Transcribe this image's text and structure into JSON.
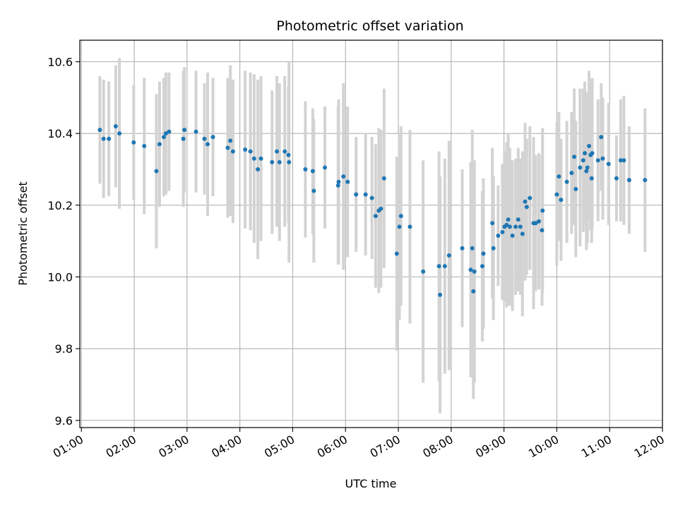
{
  "chart_data": {
    "type": "scatter",
    "title": "Photometric offset variation",
    "xlabel": "UTC time",
    "ylabel": "Photometric offset",
    "x_unit": "hours UTC",
    "xlim": [
      0.97,
      12.0
    ],
    "ylim": [
      9.58,
      10.66
    ],
    "xticks": [
      1,
      2,
      3,
      4,
      5,
      6,
      7,
      8,
      9,
      10,
      11,
      12
    ],
    "xtick_labels": [
      "01:00",
      "02:00",
      "03:00",
      "04:00",
      "05:00",
      "06:00",
      "07:00",
      "08:00",
      "09:00",
      "10:00",
      "11:00",
      "12:00"
    ],
    "yticks": [
      9.6,
      9.8,
      10.0,
      10.2,
      10.4,
      10.6
    ],
    "ytick_labels": [
      "9.6",
      "9.8",
      "10.0",
      "10.2",
      "10.4",
      "10.6"
    ],
    "grid": true,
    "colors": {
      "points": "#1f77b4",
      "errorbars": "#d3d3d3",
      "grid": "#b0b0b0"
    },
    "points": [
      {
        "x": 1.35,
        "y": 10.41,
        "err": 0.15
      },
      {
        "x": 1.42,
        "y": 10.385,
        "err": 0.165
      },
      {
        "x": 1.52,
        "y": 10.385,
        "err": 0.16
      },
      {
        "x": 1.65,
        "y": 10.42,
        "err": 0.17
      },
      {
        "x": 1.72,
        "y": 10.4,
        "err": 0.21
      },
      {
        "x": 1.99,
        "y": 10.375,
        "err": 0.16
      },
      {
        "x": 2.19,
        "y": 10.365,
        "err": 0.19
      },
      {
        "x": 2.42,
        "y": 10.295,
        "err": 0.215
      },
      {
        "x": 2.48,
        "y": 10.37,
        "err": 0.175
      },
      {
        "x": 2.56,
        "y": 10.39,
        "err": 0.165
      },
      {
        "x": 2.6,
        "y": 10.4,
        "err": 0.17
      },
      {
        "x": 2.66,
        "y": 10.405,
        "err": 0.165
      },
      {
        "x": 2.93,
        "y": 10.385,
        "err": 0.19
      },
      {
        "x": 2.95,
        "y": 10.41,
        "err": 0.175
      },
      {
        "x": 3.17,
        "y": 10.405,
        "err": 0.17
      },
      {
        "x": 3.33,
        "y": 10.385,
        "err": 0.155
      },
      {
        "x": 3.39,
        "y": 10.37,
        "err": 0.2
      },
      {
        "x": 3.49,
        "y": 10.39,
        "err": 0.165
      },
      {
        "x": 3.77,
        "y": 10.36,
        "err": 0.195
      },
      {
        "x": 3.82,
        "y": 10.38,
        "err": 0.21
      },
      {
        "x": 3.87,
        "y": 10.35,
        "err": 0.2
      },
      {
        "x": 4.1,
        "y": 10.355,
        "err": 0.22
      },
      {
        "x": 4.2,
        "y": 10.35,
        "err": 0.22
      },
      {
        "x": 4.27,
        "y": 10.33,
        "err": 0.235
      },
      {
        "x": 4.34,
        "y": 10.3,
        "err": 0.25
      },
      {
        "x": 4.4,
        "y": 10.33,
        "err": 0.23
      },
      {
        "x": 4.61,
        "y": 10.32,
        "err": 0.2
      },
      {
        "x": 4.7,
        "y": 10.35,
        "err": 0.21
      },
      {
        "x": 4.75,
        "y": 10.32,
        "err": 0.22
      },
      {
        "x": 4.85,
        "y": 10.35,
        "err": 0.21
      },
      {
        "x": 4.92,
        "y": 10.34,
        "err": 0.19
      },
      {
        "x": 4.93,
        "y": 10.32,
        "err": 0.28
      },
      {
        "x": 5.24,
        "y": 10.3,
        "err": 0.19
      },
      {
        "x": 5.38,
        "y": 10.295,
        "err": 0.175
      },
      {
        "x": 5.4,
        "y": 10.24,
        "err": 0.2
      },
      {
        "x": 5.61,
        "y": 10.305,
        "err": 0.17
      },
      {
        "x": 5.86,
        "y": 10.255,
        "err": 0.22
      },
      {
        "x": 5.87,
        "y": 10.265,
        "err": 0.23
      },
      {
        "x": 5.96,
        "y": 10.28,
        "err": 0.26
      },
      {
        "x": 6.04,
        "y": 10.265,
        "err": 0.21
      },
      {
        "x": 6.2,
        "y": 10.23,
        "err": 0.16
      },
      {
        "x": 6.38,
        "y": 10.23,
        "err": 0.17
      },
      {
        "x": 6.5,
        "y": 10.22,
        "err": 0.17
      },
      {
        "x": 6.57,
        "y": 10.17,
        "err": 0.2
      },
      {
        "x": 6.63,
        "y": 10.185,
        "err": 0.23
      },
      {
        "x": 6.67,
        "y": 10.19,
        "err": 0.22
      },
      {
        "x": 6.73,
        "y": 10.275,
        "err": 0.25
      },
      {
        "x": 6.97,
        "y": 10.065,
        "err": 0.27
      },
      {
        "x": 7.02,
        "y": 10.14,
        "err": 0.26
      },
      {
        "x": 7.05,
        "y": 10.17,
        "err": 0.25
      },
      {
        "x": 7.22,
        "y": 10.14,
        "err": 0.27
      },
      {
        "x": 7.47,
        "y": 10.015,
        "err": 0.31
      },
      {
        "x": 7.77,
        "y": 10.03,
        "err": 0.32
      },
      {
        "x": 7.79,
        "y": 9.95,
        "err": 0.33
      },
      {
        "x": 7.88,
        "y": 10.03,
        "err": 0.3
      },
      {
        "x": 7.96,
        "y": 10.06,
        "err": 0.32
      },
      {
        "x": 8.21,
        "y": 10.08,
        "err": 0.22
      },
      {
        "x": 8.37,
        "y": 10.02,
        "err": 0.3
      },
      {
        "x": 8.4,
        "y": 10.08,
        "err": 0.33
      },
      {
        "x": 8.42,
        "y": 9.96,
        "err": 0.3
      },
      {
        "x": 8.44,
        "y": 10.015,
        "err": 0.31
      },
      {
        "x": 8.59,
        "y": 10.03,
        "err": 0.21
      },
      {
        "x": 8.61,
        "y": 10.065,
        "err": 0.21
      },
      {
        "x": 8.78,
        "y": 10.15,
        "err": 0.21
      },
      {
        "x": 8.8,
        "y": 10.08,
        "err": 0.2
      },
      {
        "x": 8.89,
        "y": 10.115,
        "err": 0.14
      },
      {
        "x": 8.97,
        "y": 10.125,
        "err": 0.19
      },
      {
        "x": 9.01,
        "y": 10.14,
        "err": 0.21
      },
      {
        "x": 9.05,
        "y": 10.145,
        "err": 0.23
      },
      {
        "x": 9.08,
        "y": 10.16,
        "err": 0.24
      },
      {
        "x": 9.11,
        "y": 10.14,
        "err": 0.22
      },
      {
        "x": 9.16,
        "y": 10.115,
        "err": 0.21
      },
      {
        "x": 9.22,
        "y": 10.14,
        "err": 0.19
      },
      {
        "x": 9.27,
        "y": 10.16,
        "err": 0.2
      },
      {
        "x": 9.31,
        "y": 10.14,
        "err": 0.19
      },
      {
        "x": 9.35,
        "y": 10.12,
        "err": 0.23
      },
      {
        "x": 9.4,
        "y": 10.21,
        "err": 0.22
      },
      {
        "x": 9.43,
        "y": 10.195,
        "err": 0.19
      },
      {
        "x": 9.49,
        "y": 10.22,
        "err": 0.2
      },
      {
        "x": 9.56,
        "y": 10.15,
        "err": 0.24
      },
      {
        "x": 9.6,
        "y": 10.15,
        "err": 0.19
      },
      {
        "x": 9.66,
        "y": 10.155,
        "err": 0.19
      },
      {
        "x": 9.72,
        "y": 10.13,
        "err": 0.21
      },
      {
        "x": 9.73,
        "y": 10.185,
        "err": 0.23
      },
      {
        "x": 10.0,
        "y": 10.23,
        "err": 0.2
      },
      {
        "x": 10.04,
        "y": 10.28,
        "err": 0.18
      },
      {
        "x": 10.08,
        "y": 10.215,
        "err": 0.17
      },
      {
        "x": 10.19,
        "y": 10.265,
        "err": 0.17
      },
      {
        "x": 10.28,
        "y": 10.29,
        "err": 0.17
      },
      {
        "x": 10.33,
        "y": 10.335,
        "err": 0.19
      },
      {
        "x": 10.36,
        "y": 10.245,
        "err": 0.19
      },
      {
        "x": 10.44,
        "y": 10.305,
        "err": 0.22
      },
      {
        "x": 10.5,
        "y": 10.325,
        "err": 0.2
      },
      {
        "x": 10.53,
        "y": 10.345,
        "err": 0.2
      },
      {
        "x": 10.56,
        "y": 10.295,
        "err": 0.22
      },
      {
        "x": 10.58,
        "y": 10.305,
        "err": 0.21
      },
      {
        "x": 10.61,
        "y": 10.365,
        "err": 0.21
      },
      {
        "x": 10.64,
        "y": 10.34,
        "err": 0.21
      },
      {
        "x": 10.66,
        "y": 10.275,
        "err": 0.18
      },
      {
        "x": 10.67,
        "y": 10.345,
        "err": 0.21
      },
      {
        "x": 10.78,
        "y": 10.325,
        "err": 0.17
      },
      {
        "x": 10.84,
        "y": 10.39,
        "err": 0.15
      },
      {
        "x": 10.87,
        "y": 10.33,
        "err": 0.17
      },
      {
        "x": 10.98,
        "y": 10.315,
        "err": 0.17
      },
      {
        "x": 11.13,
        "y": 10.275,
        "err": 0.12
      },
      {
        "x": 11.21,
        "y": 10.325,
        "err": 0.17
      },
      {
        "x": 11.27,
        "y": 10.325,
        "err": 0.18
      },
      {
        "x": 11.37,
        "y": 10.27,
        "err": 0.15
      },
      {
        "x": 11.67,
        "y": 10.27,
        "err": 0.2
      }
    ]
  }
}
